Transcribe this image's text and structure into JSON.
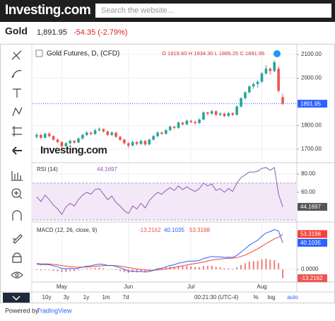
{
  "header": {
    "logo": "Investing.com",
    "search_placeholder": "Search the website..."
  },
  "quote": {
    "name": "Gold",
    "price": "1,891.95",
    "change": "-54.35 (-2.79%)"
  },
  "chart_data": [
    {
      "type": "candlestick",
      "title": "Gold Futures, D, (CFD)",
      "ohlc_label": "O 1919.60 H 1934.30 L 1885.25 C 1891.95",
      "watermark": "Investing.com",
      "up_color": "#26a69a",
      "down_color": "#ef5350",
      "last_line_color": "#2962ff",
      "ylim": [
        1649,
        2136
      ],
      "yticks": [
        {
          "value": 1700,
          "label": "1700.00"
        },
        {
          "value": 1800,
          "label": "1800.00"
        },
        {
          "value": 2000,
          "label": "2000.00"
        },
        {
          "value": 2100,
          "label": "2100.00"
        }
      ],
      "candles": [
        [
          1752,
          1768,
          1745,
          1760
        ],
        [
          1760,
          1764,
          1742,
          1748
        ],
        [
          1748,
          1770,
          1746,
          1765
        ],
        [
          1765,
          1772,
          1750,
          1755
        ],
        [
          1755,
          1758,
          1735,
          1740
        ],
        [
          1740,
          1745,
          1725,
          1730
        ],
        [
          1730,
          1734,
          1705,
          1712
        ],
        [
          1712,
          1730,
          1708,
          1725
        ],
        [
          1725,
          1740,
          1720,
          1735
        ],
        [
          1735,
          1738,
          1722,
          1728
        ],
        [
          1728,
          1750,
          1725,
          1745
        ],
        [
          1745,
          1765,
          1740,
          1760
        ],
        [
          1760,
          1776,
          1755,
          1770
        ],
        [
          1770,
          1774,
          1758,
          1764
        ],
        [
          1764,
          1786,
          1760,
          1780
        ],
        [
          1780,
          1792,
          1774,
          1785
        ],
        [
          1785,
          1788,
          1770,
          1775
        ],
        [
          1775,
          1778,
          1755,
          1760
        ],
        [
          1760,
          1775,
          1756,
          1770
        ],
        [
          1770,
          1772,
          1748,
          1752
        ],
        [
          1752,
          1756,
          1735,
          1740
        ],
        [
          1740,
          1744,
          1720,
          1725
        ],
        [
          1725,
          1730,
          1705,
          1715
        ],
        [
          1715,
          1736,
          1712,
          1730
        ],
        [
          1730,
          1734,
          1716,
          1722
        ],
        [
          1722,
          1740,
          1718,
          1735
        ],
        [
          1735,
          1738,
          1714,
          1720
        ],
        [
          1720,
          1745,
          1717,
          1740
        ],
        [
          1740,
          1760,
          1736,
          1755
        ],
        [
          1755,
          1775,
          1750,
          1770
        ],
        [
          1770,
          1774,
          1760,
          1765
        ],
        [
          1765,
          1785,
          1762,
          1780
        ],
        [
          1780,
          1800,
          1776,
          1795
        ],
        [
          1795,
          1798,
          1784,
          1790
        ],
        [
          1790,
          1816,
          1786,
          1812
        ],
        [
          1812,
          1815,
          1800,
          1805
        ],
        [
          1805,
          1825,
          1800,
          1820
        ],
        [
          1820,
          1824,
          1810,
          1815
        ],
        [
          1815,
          1820,
          1804,
          1810
        ],
        [
          1810,
          1830,
          1806,
          1825
        ],
        [
          1825,
          1860,
          1822,
          1855
        ],
        [
          1855,
          1858,
          1842,
          1850
        ],
        [
          1850,
          1866,
          1846,
          1860
        ],
        [
          1860,
          1864,
          1840,
          1845
        ],
        [
          1845,
          1856,
          1840,
          1850
        ],
        [
          1850,
          1854,
          1835,
          1840
        ],
        [
          1840,
          1858,
          1836,
          1852
        ],
        [
          1852,
          1856,
          1840,
          1845
        ],
        [
          1845,
          1885,
          1842,
          1880
        ],
        [
          1880,
          1920,
          1876,
          1915
        ],
        [
          1915,
          1945,
          1910,
          1940
        ],
        [
          1940,
          1970,
          1935,
          1965
        ],
        [
          1965,
          1982,
          1955,
          1975
        ],
        [
          1975,
          1990,
          1960,
          1985
        ],
        [
          1985,
          2025,
          1980,
          2020
        ],
        [
          2020,
          2055,
          2015,
          2040
        ],
        [
          2040,
          2045,
          2015,
          2030
        ],
        [
          2030,
          2075,
          2025,
          2067
        ],
        [
          2040,
          2050,
          1940,
          1946.3
        ],
        [
          1919.6,
          1934.3,
          1885.25,
          1891.95
        ]
      ]
    },
    {
      "type": "rsi",
      "title": "RSI (14)",
      "color": "#8e5bb5",
      "band": [
        30,
        70
      ],
      "band_color": "#f3e8f7",
      "ylim": [
        29.2,
        90.8
      ],
      "yticks": [
        {
          "value": 60,
          "label": "60.00"
        },
        {
          "value": 80,
          "label": "80.00"
        }
      ],
      "values": [
        55,
        50,
        57,
        52,
        46,
        42,
        36,
        44,
        48,
        45,
        52,
        57,
        60,
        58,
        63,
        64,
        58,
        52,
        56,
        49,
        45,
        40,
        37,
        45,
        42,
        48,
        43,
        51,
        56,
        60,
        58,
        62,
        65,
        62,
        67,
        63,
        66,
        63,
        61,
        64,
        70,
        67,
        69,
        62,
        64,
        60,
        64,
        61,
        70,
        76,
        79,
        82,
        82,
        83,
        86,
        87,
        84,
        87,
        58,
        44.1697
      ]
    },
    {
      "type": "macd",
      "title": "MACD (12, 26, close, 9)",
      "ylim": [
        -17,
        69.3
      ],
      "yticks": [
        {
          "value": 0,
          "label": "0.0000"
        }
      ],
      "categories": [
        null,
        null,
        null,
        null,
        null,
        null,
        "May",
        null,
        null,
        null,
        null,
        null,
        null,
        null,
        null,
        null,
        null,
        null,
        null,
        null,
        null,
        null,
        "Jun",
        null,
        null,
        null,
        null,
        null,
        null,
        null,
        null,
        null,
        null,
        null,
        null,
        null,
        null,
        "Jul",
        null,
        null,
        null,
        null,
        null,
        null,
        null,
        null,
        null,
        null,
        null,
        null,
        null,
        null,
        null,
        null,
        "Aug",
        null,
        null,
        null,
        null,
        null
      ],
      "histogram": {
        "color": "#ef5350",
        "values": [
          -1,
          -1.6,
          -0.9,
          -1.1,
          -2.1,
          -2.9,
          -4.3,
          -3.9,
          -2.7,
          -2.6,
          -1.3,
          0.2,
          1.4,
          1.5,
          2.4,
          2.7,
          1.8,
          0.2,
          0.1,
          -1.1,
          -2.5,
          -4,
          -5.2,
          -4.2,
          -4.2,
          -3,
          -3.2,
          -1.8,
          -0.2,
          1.8,
          2.2,
          3.4,
          4.3,
          4.2,
          5.4,
          5.1,
          5.3,
          4.6,
          3.7,
          3.7,
          5.3,
          5.4,
          5.5,
          4,
          3.2,
          1.8,
          1.8,
          1,
          3.2,
          6.6,
          9.3,
          11.8,
          12.6,
          12.9,
          15.1,
          16.1,
          14.5,
          14,
          9.6,
          -13.2162
        ]
      },
      "macd": {
        "color": "#2962ff",
        "values": [
          8,
          7,
          7.5,
          7,
          5.5,
          4,
          1.5,
          1,
          1.5,
          1,
          2,
          3.5,
          5,
          5.5,
          7,
          8,
          7.5,
          6,
          6,
          4.5,
          2.5,
          0,
          -2.5,
          -2.5,
          -3.5,
          -3,
          -4,
          -3,
          -1.5,
          1,
          2,
          4,
          6,
          7,
          9.5,
          10.5,
          12,
          12.5,
          12.5,
          13.5,
          16.5,
          18,
          19.5,
          19,
          19,
          18,
          18.5,
          18,
          21,
          26,
          31,
          36.5,
          40.5,
          44,
          50,
          55,
          57,
          60,
          58,
          40.1035
        ]
      },
      "signal": {
        "color": "#f44336",
        "values": [
          9,
          8.6,
          8.4,
          8.1,
          7.6,
          6.9,
          5.8,
          4.9,
          4.2,
          3.6,
          3.3,
          3.3,
          3.6,
          4,
          4.6,
          5.3,
          5.7,
          5.8,
          5.9,
          5.6,
          5,
          4,
          2.7,
          1.7,
          0.7,
          0,
          -0.8,
          -1.2,
          -1.3,
          -0.8,
          -0.2,
          0.6,
          1.7,
          2.8,
          4.1,
          5.4,
          6.7,
          7.9,
          8.8,
          9.8,
          11.2,
          12.6,
          14,
          15,
          15.8,
          16.2,
          16.7,
          17,
          17.8,
          19.4,
          21.7,
          24.7,
          27.9,
          31.1,
          34.9,
          38.9,
          42.5,
          46,
          48.4,
          53.3198
        ]
      }
    }
  ],
  "toolbar": {
    "ranges": [
      "10y",
      "3y",
      "1y",
      "1m",
      "7d"
    ],
    "time": "00:21:30 (UTC-4)",
    "scales": [
      "%",
      "log",
      "auto"
    ]
  },
  "footer": {
    "prefix": "Powered by",
    "link": "TradingView"
  }
}
